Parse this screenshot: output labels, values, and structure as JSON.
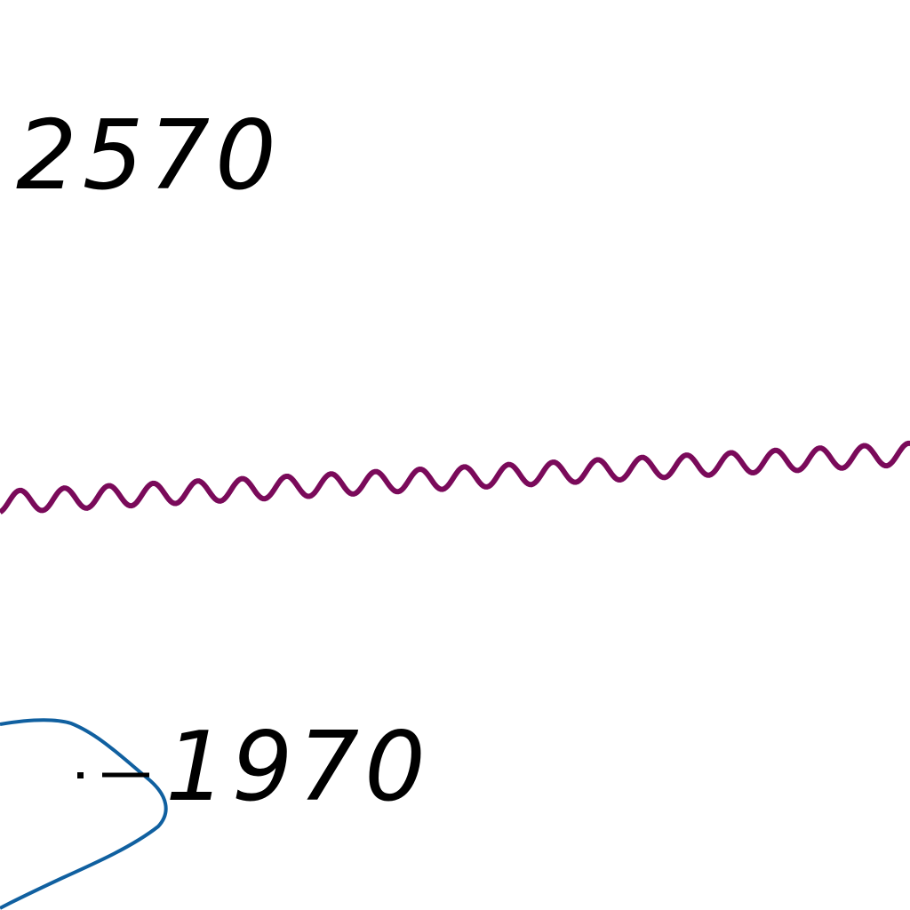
{
  "labels": [
    "2570",
    "1970"
  ]
}
